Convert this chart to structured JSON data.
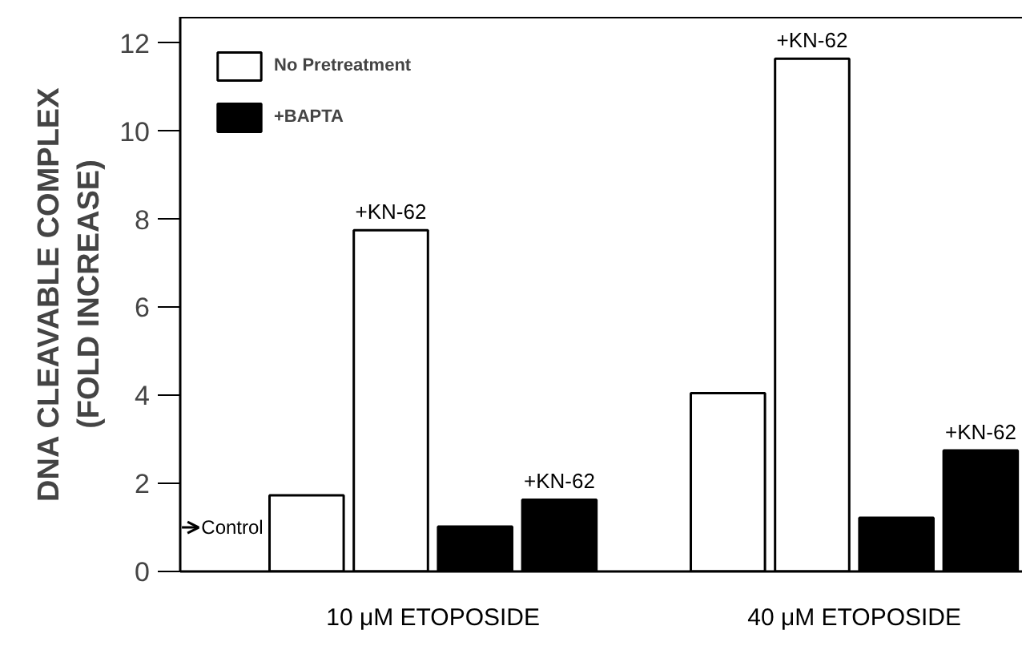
{
  "chart_data": {
    "type": "bar",
    "ylabel": "DNA CLEAVABLE COMPLEX\n(FOLD INCREASE)",
    "categories": [
      null,
      null,
      null,
      null,
      null,
      null,
      null,
      null,
      null,
      null
    ],
    "series": [
      {
        "name": "No Pretreatment",
        "color": "#ffffff",
        "values": [
          null,
          1.73,
          7.75,
          null,
          null,
          null,
          4.05,
          11.65,
          null,
          null
        ],
        "value_labels": [
          null,
          null,
          "+KN-62",
          null,
          null,
          null,
          null,
          "+KN-62",
          null,
          null
        ]
      },
      {
        "name": "+BAPTA",
        "color": "#000000",
        "values": [
          null,
          null,
          null,
          1.02,
          1.63,
          null,
          null,
          null,
          1.22,
          2.75
        ],
        "value_labels": [
          null,
          null,
          null,
          null,
          "+KN-62",
          null,
          null,
          null,
          null,
          "+KN-62"
        ]
      }
    ],
    "annotations": [
      "Control",
      "10 μM ETOPOSIDE",
      "40 μM ETOPOSIDE"
    ],
    "ylim": [
      0,
      12.6
    ],
    "yticks": [
      0,
      2,
      4,
      6,
      8,
      10,
      12
    ],
    "grid": false,
    "legend": "top left"
  }
}
